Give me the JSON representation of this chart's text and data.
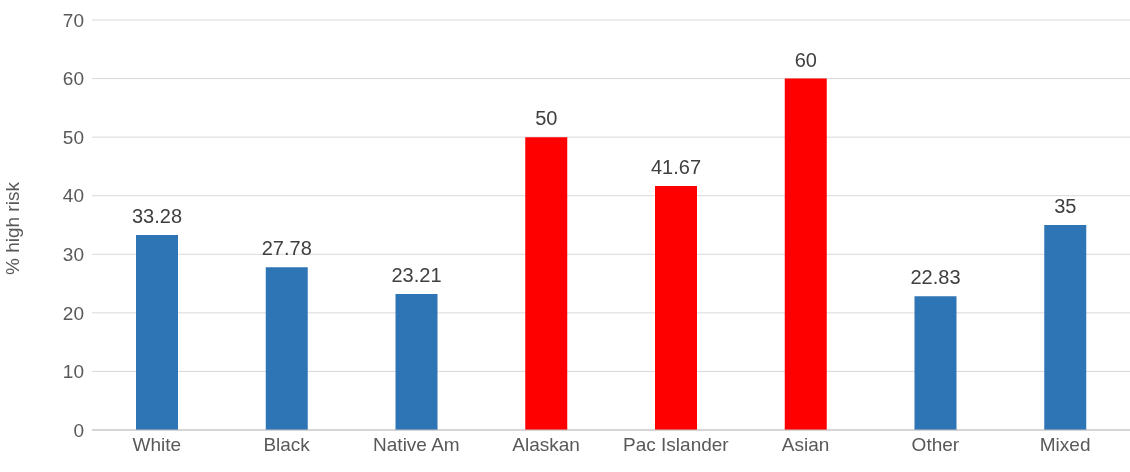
{
  "chart_data": {
    "type": "bar",
    "ylabel": "% high risk",
    "categories": [
      "White",
      "Black",
      "Native Am",
      "Alaskan",
      "Pac Islander",
      "Asian",
      "Other",
      "Mixed"
    ],
    "values": [
      33.28,
      27.78,
      23.21,
      50,
      41.67,
      60,
      22.83,
      35
    ],
    "colors": [
      "#2e75b6",
      "#2e75b6",
      "#2e75b6",
      "#ff0000",
      "#ff0000",
      "#ff0000",
      "#2e75b6",
      "#2e75b6"
    ],
    "ylim": [
      0,
      70
    ],
    "yticks": [
      0,
      10,
      20,
      30,
      40,
      50,
      60,
      70
    ],
    "grid": "y",
    "data_labels": true,
    "legend": false
  }
}
